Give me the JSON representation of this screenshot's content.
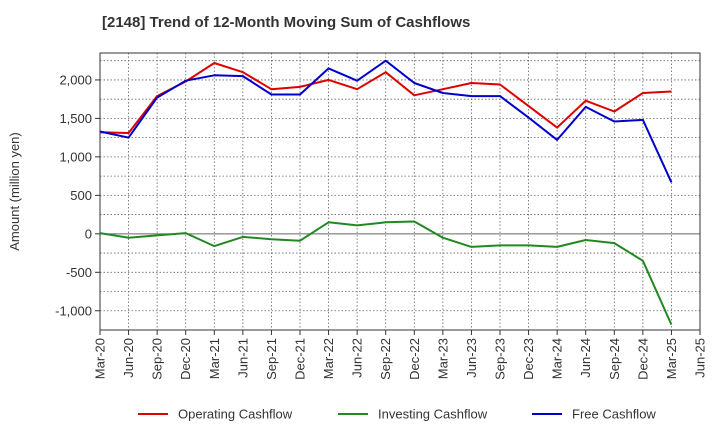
{
  "chart_data": {
    "type": "line",
    "title": "[2148]  Trend of 12-Month Moving Sum of Cashflows",
    "xlabel": "",
    "ylabel": "Amount (million yen)",
    "ylim": [
      -1250,
      2350
    ],
    "yticks": [
      -1000,
      -500,
      0,
      500,
      1000,
      1500,
      2000
    ],
    "ytick_labels": [
      "-1,000",
      "-500",
      "0",
      "500",
      "1,000",
      "1,500",
      "2,000"
    ],
    "categories": [
      "Mar-20",
      "Jun-20",
      "Sep-20",
      "Dec-20",
      "Mar-21",
      "Jun-21",
      "Sep-21",
      "Dec-21",
      "Mar-22",
      "Jun-22",
      "Sep-22",
      "Dec-22",
      "Mar-23",
      "Jun-23",
      "Sep-23",
      "Dec-23",
      "Mar-24",
      "Jun-24",
      "Sep-24",
      "Dec-24",
      "Mar-25",
      "Jun-25"
    ],
    "grid": true,
    "legend_position": "bottom",
    "series": [
      {
        "name": "Operating Cashflow",
        "color": "#dd0000",
        "values": [
          1320,
          1310,
          1790,
          1980,
          2220,
          2100,
          1880,
          1910,
          2000,
          1880,
          2100,
          1800,
          1880,
          1960,
          1940,
          1660,
          1380,
          1730,
          1590,
          1830,
          1850,
          null
        ]
      },
      {
        "name": "Investing Cashflow",
        "color": "#228822",
        "values": [
          10,
          -50,
          -20,
          10,
          -160,
          -40,
          -70,
          -90,
          150,
          110,
          150,
          160,
          -50,
          -170,
          -150,
          -150,
          -170,
          -80,
          -120,
          -350,
          -1180,
          null
        ]
      },
      {
        "name": "Free Cashflow",
        "color": "#0000cc",
        "values": [
          1330,
          1250,
          1770,
          1990,
          2060,
          2050,
          1810,
          1810,
          2150,
          1990,
          2250,
          1960,
          1830,
          1790,
          1790,
          1510,
          1220,
          1650,
          1460,
          1480,
          670,
          null
        ]
      }
    ]
  }
}
